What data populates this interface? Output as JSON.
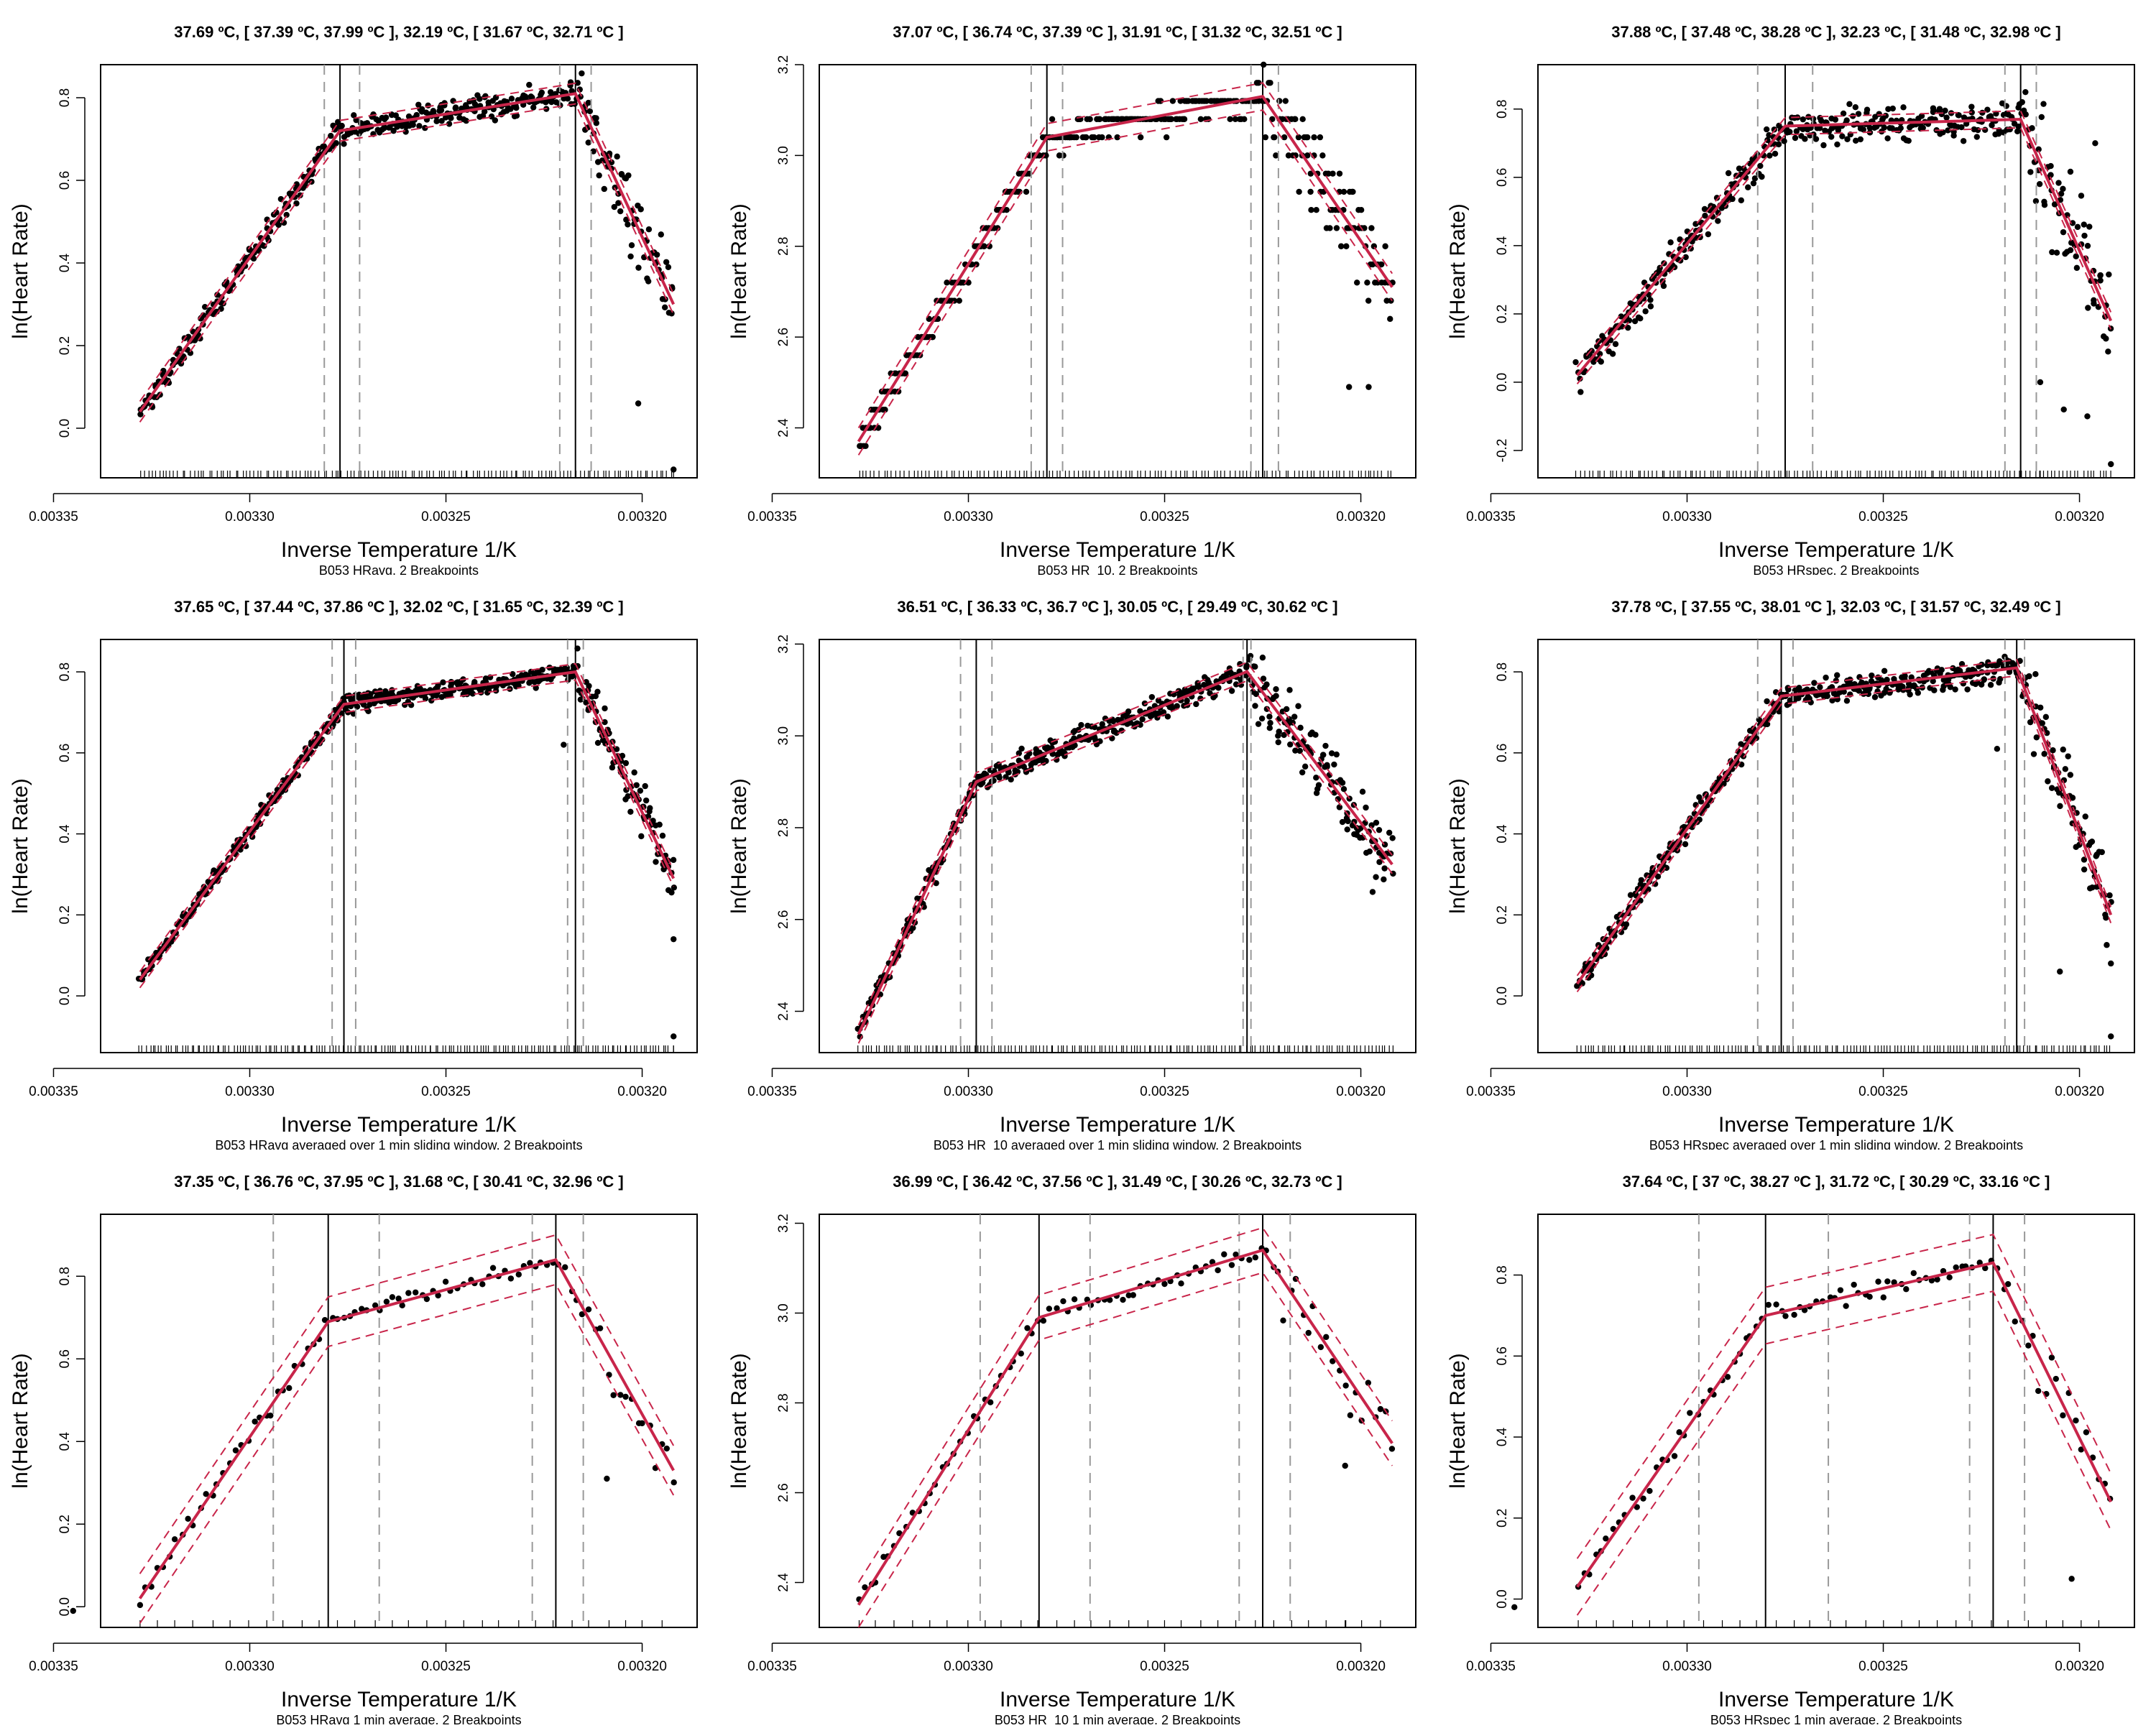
{
  "colors": {
    "fit": "#c8254a",
    "ci": "#c8254a",
    "breakpoint": "#000000",
    "breakpoint_ci": "#999999",
    "points": "#000000"
  },
  "chart_data": [
    {
      "type": "scatter",
      "title": "37.69 ºC, [ 37.39 ºC, 37.99 ºC ], 32.19 ºC, [ 31.67 ºC, 32.71 ºC ]",
      "subtitle": "B053 HRavg, 2 Breakpoints",
      "xlabel": "Inverse Temperature 1/K",
      "ylabel": "ln(Heart Rate)",
      "x_range": [
        0.003338,
        0.003186
      ],
      "x_reversed": true,
      "ylim": [
        -0.12,
        0.88
      ],
      "x_ticks": [
        0.00335,
        0.0033,
        0.00325,
        0.0032
      ],
      "x_tick_labels": [
        "0.00335",
        "0.00330",
        "0.00325",
        "0.00320"
      ],
      "y_ticks": [
        0.0,
        0.2,
        0.4,
        0.6,
        0.8
      ],
      "y_tick_labels": [
        "0.0",
        "0.2",
        "0.4",
        "0.6",
        "0.8"
      ],
      "breakpoints": [
        0.003277,
        0.003217
      ],
      "breakpoint_ci": [
        [
          0.003281,
          0.003272
        ],
        [
          0.003221,
          0.003213
        ]
      ],
      "fit": {
        "x": [
          0.003328,
          0.003277,
          0.003217,
          0.003192
        ],
        "y": [
          0.04,
          0.72,
          0.81,
          0.3
        ]
      },
      "ci_band": 0.025,
      "points": {
        "density": 420,
        "noise": 0.03,
        "outliers": [
          [
            0.003192,
            -0.1
          ],
          [
            0.003201,
            0.06
          ]
        ]
      }
    },
    {
      "type": "scatter",
      "title": "37.07 ºC, [ 36.74 ºC, 37.39 ºC ], 31.91 ºC, [ 31.32 ºC, 32.51 ºC ]",
      "subtitle": "B053 HR_10, 2 Breakpoints",
      "xlabel": "Inverse Temperature 1/K",
      "ylabel": "ln(Heart Rate)",
      "x_range": [
        0.003338,
        0.003186
      ],
      "x_reversed": true,
      "ylim": [
        2.29,
        3.2
      ],
      "x_ticks": [
        0.00335,
        0.0033,
        0.00325,
        0.0032
      ],
      "x_tick_labels": [
        "0.00335",
        "0.00330",
        "0.00325",
        "0.00320"
      ],
      "y_ticks": [
        2.4,
        2.6,
        2.8,
        3.0,
        3.2
      ],
      "y_tick_labels": [
        "2.4",
        "2.6",
        "2.8",
        "3.0",
        "3.2"
      ],
      "breakpoints": [
        0.00328,
        0.003225
      ],
      "breakpoint_ci": [
        [
          0.003284,
          0.003276
        ],
        [
          0.003228,
          0.003221
        ]
      ],
      "fit": {
        "x": [
          0.003328,
          0.00328,
          0.003225,
          0.003192
        ],
        "y": [
          2.37,
          3.04,
          3.13,
          2.71
        ]
      },
      "ci_band": 0.03,
      "points": {
        "density": 380,
        "noise": 0.03,
        "quantize": 0.04,
        "outliers": [
          [
            0.003203,
            2.49
          ],
          [
            0.003198,
            2.49
          ]
        ]
      }
    },
    {
      "type": "scatter",
      "title": "37.88 ºC, [ 37.48 ºC, 38.28 ºC ], 32.23 ºC, [ 31.48 ºC, 32.98 ºC ]",
      "subtitle": "B053 HRspec, 2 Breakpoints",
      "xlabel": "Inverse Temperature 1/K",
      "ylabel": "ln(Heart Rate)",
      "x_range": [
        0.003338,
        0.003186
      ],
      "x_reversed": true,
      "ylim": [
        -0.28,
        0.93
      ],
      "x_ticks": [
        0.00335,
        0.0033,
        0.00325,
        0.0032
      ],
      "x_tick_labels": [
        "0.00335",
        "0.00330",
        "0.00325",
        "0.00320"
      ],
      "y_ticks": [
        -0.2,
        0.0,
        0.2,
        0.4,
        0.6,
        0.8
      ],
      "y_tick_labels": [
        "-0.2",
        "0.0",
        "0.2",
        "0.4",
        "0.6",
        "0.8"
      ],
      "breakpoints": [
        0.003275,
        0.003215
      ],
      "breakpoint_ci": [
        [
          0.003282,
          0.003268
        ],
        [
          0.003219,
          0.003211
        ]
      ],
      "fit": {
        "x": [
          0.003328,
          0.003275,
          0.003215,
          0.003192
        ],
        "y": [
          0.02,
          0.75,
          0.77,
          0.18
        ]
      },
      "ci_band": 0.025,
      "points": {
        "density": 400,
        "noise": 0.05,
        "outliers": [
          [
            0.003198,
            -0.1
          ],
          [
            0.003204,
            -0.08
          ],
          [
            0.00321,
            0.0
          ],
          [
            0.003192,
            -0.24
          ],
          [
            0.003196,
            0.7
          ]
        ]
      }
    },
    {
      "type": "scatter",
      "title": "37.65 ºC, [ 37.44 ºC, 37.86 ºC ], 32.02 ºC, [ 31.65 ºC, 32.39 ºC ]",
      "subtitle": "B053 HRavg averaged over 1 min sliding window, 2 Breakpoints",
      "xlabel": "Inverse Temperature 1/K",
      "ylabel": "ln(Heart Rate)",
      "x_range": [
        0.003338,
        0.003186
      ],
      "x_reversed": true,
      "ylim": [
        -0.14,
        0.88
      ],
      "x_ticks": [
        0.00335,
        0.0033,
        0.00325,
        0.0032
      ],
      "x_tick_labels": [
        "0.00335",
        "0.00330",
        "0.00325",
        "0.00320"
      ],
      "y_ticks": [
        0.0,
        0.2,
        0.4,
        0.6,
        0.8
      ],
      "y_tick_labels": [
        "0.0",
        "0.2",
        "0.4",
        "0.6",
        "0.8"
      ],
      "breakpoints": [
        0.003276,
        0.003217
      ],
      "breakpoint_ci": [
        [
          0.003279,
          0.003273
        ],
        [
          0.003219,
          0.003215
        ]
      ],
      "fit": {
        "x": [
          0.003328,
          0.003276,
          0.003217,
          0.003192
        ],
        "y": [
          0.04,
          0.72,
          0.8,
          0.29
        ]
      },
      "ci_band": 0.02,
      "points": {
        "density": 500,
        "noise": 0.02,
        "outliers": [
          [
            0.003192,
            -0.1
          ],
          [
            0.003192,
            0.14
          ],
          [
            0.00322,
            0.62
          ]
        ]
      }
    },
    {
      "type": "scatter",
      "title": "36.51 ºC, [ 36.33 ºC, 36.7 ºC ], 30.05 ºC, [ 29.49 ºC, 30.62 ºC ]",
      "subtitle": "B053 HR_10 averaged over 1 min sliding window, 2 Breakpoints",
      "xlabel": "Inverse Temperature 1/K",
      "ylabel": "ln(Heart Rate)",
      "x_range": [
        0.003338,
        0.003186
      ],
      "x_reversed": true,
      "ylim": [
        2.31,
        3.21
      ],
      "x_ticks": [
        0.00335,
        0.0033,
        0.00325,
        0.0032
      ],
      "x_tick_labels": [
        "0.00335",
        "0.00330",
        "0.00325",
        "0.00320"
      ],
      "y_ticks": [
        2.4,
        2.6,
        2.8,
        3.0,
        3.2
      ],
      "y_tick_labels": [
        "2.4",
        "2.6",
        "2.8",
        "3.0",
        "3.2"
      ],
      "breakpoints": [
        0.003298,
        0.003229
      ],
      "breakpoint_ci": [
        [
          0.003302,
          0.003294
        ],
        [
          0.00323,
          0.003228
        ]
      ],
      "fit": {
        "x": [
          0.003328,
          0.003298,
          0.003229,
          0.003192
        ],
        "y": [
          2.35,
          2.9,
          3.14,
          2.72
        ]
      },
      "ci_band": 0.02,
      "points": {
        "density": 460,
        "noise": 0.025,
        "outliers": [
          [
            0.003197,
            2.66
          ]
        ]
      }
    },
    {
      "type": "scatter",
      "title": "37.78 ºC, [ 37.55 ºC, 38.01 ºC ], 32.03 ºC, [ 31.57 ºC, 32.49 ºC ]",
      "subtitle": "B053 HRspec averaged over 1 min sliding window, 2 Breakpoints",
      "xlabel": "Inverse Temperature 1/K",
      "ylabel": "ln(Heart Rate)",
      "x_range": [
        0.003338,
        0.003186
      ],
      "x_reversed": true,
      "ylim": [
        -0.14,
        0.88
      ],
      "x_ticks": [
        0.00335,
        0.0033,
        0.00325,
        0.0032
      ],
      "x_tick_labels": [
        "0.00335",
        "0.00330",
        "0.00325",
        "0.00320"
      ],
      "y_ticks": [
        0.0,
        0.2,
        0.4,
        0.6,
        0.8
      ],
      "y_tick_labels": [
        "0.0",
        "0.2",
        "0.4",
        "0.6",
        "0.8"
      ],
      "breakpoints": [
        0.003276,
        0.003216
      ],
      "breakpoint_ci": [
        [
          0.003282,
          0.003273
        ],
        [
          0.003219,
          0.003214
        ]
      ],
      "fit": {
        "x": [
          0.003328,
          0.003276,
          0.003216,
          0.003192
        ],
        "y": [
          0.03,
          0.74,
          0.81,
          0.2
        ]
      },
      "ci_band": 0.02,
      "points": {
        "density": 460,
        "noise": 0.03,
        "outliers": [
          [
            0.003192,
            -0.1
          ],
          [
            0.003192,
            0.08
          ],
          [
            0.003221,
            0.61
          ],
          [
            0.003205,
            0.06
          ]
        ]
      }
    },
    {
      "type": "scatter",
      "title": "37.35 ºC, [ 36.76 ºC, 37.95 ºC ], 31.68 ºC, [ 30.41 ºC, 32.96 ºC ]",
      "subtitle": "B053 HRavg 1 min average, 2 Breakpoints",
      "xlabel": "Inverse Temperature 1/K",
      "ylabel": "ln(Heart Rate)",
      "x_range": [
        0.003338,
        0.003186
      ],
      "x_reversed": true,
      "ylim": [
        -0.05,
        0.95
      ],
      "x_ticks": [
        0.00335,
        0.0033,
        0.00325,
        0.0032
      ],
      "x_tick_labels": [
        "0.00335",
        "0.00330",
        "0.00325",
        "0.00320"
      ],
      "y_ticks": [
        0.0,
        0.2,
        0.4,
        0.6,
        0.8
      ],
      "y_tick_labels": [
        "0.0",
        "0.2",
        "0.4",
        "0.6",
        "0.8"
      ],
      "breakpoints": [
        0.00328,
        0.003222
      ],
      "breakpoint_ci": [
        [
          0.003294,
          0.003267
        ],
        [
          0.003228,
          0.003215
        ]
      ],
      "fit": {
        "x": [
          0.003328,
          0.00328,
          0.003222,
          0.003192
        ],
        "y": [
          0.02,
          0.69,
          0.84,
          0.33
        ]
      },
      "ci_band": 0.06,
      "points": {
        "density": 90,
        "noise": 0.02,
        "outliers": [
          [
            0.003345,
            -0.01
          ],
          [
            0.003209,
            0.31
          ]
        ]
      }
    },
    {
      "type": "scatter",
      "title": "36.99 ºC, [ 36.42 ºC, 37.56 ºC ], 31.49 ºC, [ 30.26 ºC, 32.73 ºC ]",
      "subtitle": "B053 HR_10 1 min average, 2 Breakpoints",
      "xlabel": "Inverse Temperature 1/K",
      "ylabel": "ln(Heart Rate)",
      "x_range": [
        0.003338,
        0.003186
      ],
      "x_reversed": true,
      "ylim": [
        2.3,
        3.22
      ],
      "x_ticks": [
        0.00335,
        0.0033,
        0.00325,
        0.0032
      ],
      "x_tick_labels": [
        "0.00335",
        "0.00330",
        "0.00325",
        "0.00320"
      ],
      "y_ticks": [
        2.4,
        2.6,
        2.8,
        3.0,
        3.2
      ],
      "y_tick_labels": [
        "2.4",
        "2.6",
        "2.8",
        "3.0",
        "3.2"
      ],
      "breakpoints": [
        0.003282,
        0.003225
      ],
      "breakpoint_ci": [
        [
          0.003297,
          0.003269
        ],
        [
          0.003231,
          0.003218
        ]
      ],
      "fit": {
        "x": [
          0.003328,
          0.003282,
          0.003225,
          0.003192
        ],
        "y": [
          2.35,
          2.99,
          3.14,
          2.71
        ]
      },
      "ci_band": 0.05,
      "points": {
        "density": 90,
        "noise": 0.02,
        "outliers": [
          [
            0.003204,
            2.66
          ]
        ]
      }
    },
    {
      "type": "scatter",
      "title": "37.64 ºC, [ 37 ºC, 38.27 ºC ], 31.72 ºC, [ 30.29 ºC, 33.16 ºC ]",
      "subtitle": "B053 HRspec 1 min average, 2 Breakpoints",
      "xlabel": "Inverse Temperature 1/K",
      "ylabel": "ln(Heart Rate)",
      "x_range": [
        0.003338,
        0.003186
      ],
      "x_reversed": true,
      "ylim": [
        -0.07,
        0.95
      ],
      "x_ticks": [
        0.00335,
        0.0033,
        0.00325,
        0.0032
      ],
      "x_tick_labels": [
        "0.00335",
        "0.00330",
        "0.00325",
        "0.00320"
      ],
      "y_ticks": [
        0.0,
        0.2,
        0.4,
        0.6,
        0.8
      ],
      "y_tick_labels": [
        "0.0",
        "0.2",
        "0.4",
        "0.6",
        "0.8"
      ],
      "breakpoints": [
        0.00328,
        0.003222
      ],
      "breakpoint_ci": [
        [
          0.003297,
          0.003264
        ],
        [
          0.003228,
          0.003214
        ]
      ],
      "fit": {
        "x": [
          0.003328,
          0.00328,
          0.003222,
          0.003192
        ],
        "y": [
          0.03,
          0.7,
          0.83,
          0.24
        ]
      },
      "ci_band": 0.07,
      "points": {
        "density": 90,
        "noise": 0.025,
        "outliers": [
          [
            0.003344,
            -0.02
          ],
          [
            0.003202,
            0.05
          ]
        ]
      }
    }
  ]
}
